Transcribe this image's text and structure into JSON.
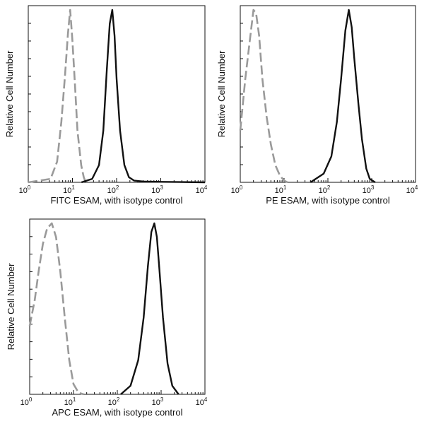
{
  "chart_data": [
    {
      "type": "area",
      "xlabel": "FITC  ESAM,  with isotype control",
      "ylabel": "Relative Cell Number",
      "x_scale": "log",
      "xlim": [
        1,
        10000
      ],
      "x_ticks": [
        {
          "base": "10",
          "exp": "0"
        },
        {
          "base": "10",
          "exp": "1"
        },
        {
          "base": "10",
          "exp": "2"
        },
        {
          "base": "10",
          "exp": "3"
        },
        {
          "base": "10",
          "exp": "4"
        }
      ],
      "series": [
        {
          "style": "dashed",
          "color": "#9a9a9a",
          "x": [
            1.0,
            3.2,
            4.5,
            5.6,
            6.8,
            7.9,
            8.9,
            10.0,
            11.5,
            13.0,
            15.8,
            18.0,
            20.0
          ],
          "y": [
            0.0,
            0.02,
            0.12,
            0.35,
            0.62,
            0.86,
            1.0,
            0.82,
            0.55,
            0.3,
            0.1,
            0.03,
            0.0
          ]
        },
        {
          "style": "solid",
          "color": "#111111",
          "x": [
            16.0,
            28.0,
            40.0,
            50.0,
            60.0,
            70.0,
            80.0,
            90.0,
            100.0,
            120.0,
            150.0,
            190.0,
            250.0,
            400.0,
            1000.0,
            10000.0
          ],
          "y": [
            0.0,
            0.02,
            0.1,
            0.3,
            0.65,
            0.92,
            1.0,
            0.85,
            0.6,
            0.3,
            0.1,
            0.03,
            0.01,
            0.005,
            0.003,
            0.0
          ]
        }
      ]
    },
    {
      "type": "area",
      "xlabel": "PE ESAM,  with isotype control",
      "ylabel": "Relative Cell Number",
      "x_scale": "log",
      "xlim": [
        1,
        10000
      ],
      "x_ticks": [
        {
          "base": "10",
          "exp": "0"
        },
        {
          "base": "10",
          "exp": "1"
        },
        {
          "base": "10",
          "exp": "2"
        },
        {
          "base": "10",
          "exp": "3"
        },
        {
          "base": "10",
          "exp": "4"
        }
      ],
      "series": [
        {
          "style": "dashed",
          "color": "#9a9a9a",
          "x": [
            1.0,
            1.3,
            1.7,
            2.0,
            2.3,
            2.7,
            3.2,
            4.0,
            5.0,
            6.3,
            8.0,
            10.0,
            12.0
          ],
          "y": [
            0.3,
            0.6,
            0.85,
            1.0,
            0.98,
            0.85,
            0.6,
            0.38,
            0.22,
            0.1,
            0.04,
            0.01,
            0.0
          ]
        },
        {
          "style": "solid",
          "color": "#111111",
          "x": [
            40.0,
            80.0,
            120.0,
            160.0,
            200.0,
            250.0,
            300.0,
            350.0,
            400.0,
            500.0,
            600.0,
            750.0,
            900.0,
            1200.0
          ],
          "y": [
            0.0,
            0.05,
            0.15,
            0.35,
            0.6,
            0.88,
            1.0,
            0.9,
            0.72,
            0.45,
            0.25,
            0.08,
            0.02,
            0.0
          ]
        }
      ]
    },
    {
      "type": "area",
      "xlabel": "APC ESAM, with isotype control",
      "ylabel": "Relative Cell Number",
      "x_scale": "log",
      "xlim": [
        1,
        10000
      ],
      "x_ticks": [
        {
          "base": "10",
          "exp": "0"
        },
        {
          "base": "10",
          "exp": "1"
        },
        {
          "base": "10",
          "exp": "2"
        },
        {
          "base": "10",
          "exp": "3"
        },
        {
          "base": "10",
          "exp": "4"
        }
      ],
      "series": [
        {
          "style": "dashed",
          "color": "#9a9a9a",
          "x": [
            1.0,
            1.3,
            1.6,
            2.0,
            2.5,
            3.2,
            4.0,
            5.0,
            6.3,
            8.0,
            10.0,
            13.0,
            17.0
          ],
          "y": [
            0.4,
            0.55,
            0.72,
            0.88,
            0.97,
            1.0,
            0.92,
            0.72,
            0.45,
            0.2,
            0.06,
            0.01,
            0.0
          ]
        },
        {
          "style": "solid",
          "color": "#111111",
          "x": [
            120.0,
            200.0,
            300.0,
            400.0,
            500.0,
            600.0,
            700.0,
            800.0,
            900.0,
            1100.0,
            1400.0,
            1800.0,
            2500.0
          ],
          "y": [
            0.0,
            0.05,
            0.2,
            0.45,
            0.75,
            0.95,
            1.0,
            0.92,
            0.75,
            0.45,
            0.18,
            0.05,
            0.0
          ]
        }
      ]
    }
  ]
}
